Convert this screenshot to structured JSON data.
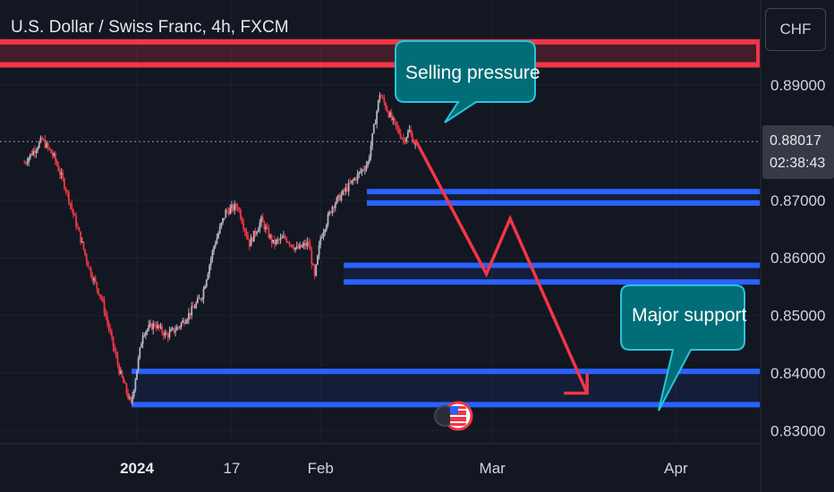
{
  "header": {
    "title": "U.S. Dollar / Swiss Franc, 4h, FXCM",
    "currency": "CHF"
  },
  "price_badge": {
    "price": "0.88017",
    "countdown": "02:38:43"
  },
  "annotations": {
    "selling_pressure": "Selling pressure",
    "major_support": "Major support"
  },
  "colors": {
    "background": "#131722",
    "resistance_zone": "#f23645",
    "support_zone": "#2962ff",
    "arrow": "#f23645",
    "callout_fill": "#006d77",
    "callout_border": "#26c6da",
    "candle_up": "#b2b5be",
    "candle_down": "#f23645"
  },
  "chart_data": {
    "type": "candlestick",
    "symbol": "USDCHF",
    "interval": "4h",
    "ylim": [
      0.828,
      0.9
    ],
    "y_ticks": [
      "0.89000",
      "0.87000",
      "0.86000",
      "0.85000",
      "0.84000",
      "0.83000"
    ],
    "x_ticks": [
      {
        "label": "2024",
        "bold": true,
        "day": 0
      },
      {
        "label": "17",
        "bold": false,
        "day": 16
      },
      {
        "label": "Feb",
        "bold": false,
        "day": 31
      },
      {
        "label": "Mar",
        "bold": false,
        "day": 60
      },
      {
        "label": "Apr",
        "bold": false,
        "day": 91
      }
    ],
    "current_price": 0.88017,
    "price_path": [
      [
        -19,
        0.8765
      ],
      [
        -16,
        0.8805
      ],
      [
        -14,
        0.8775
      ],
      [
        -12,
        0.872
      ],
      [
        -10,
        0.865
      ],
      [
        -8,
        0.858
      ],
      [
        -6,
        0.853
      ],
      [
        -3,
        0.8405
      ],
      [
        -1,
        0.8345
      ],
      [
        1,
        0.847
      ],
      [
        3,
        0.8485
      ],
      [
        5,
        0.8465
      ],
      [
        7,
        0.848
      ],
      [
        9,
        0.8505
      ],
      [
        11,
        0.8535
      ],
      [
        13,
        0.862
      ],
      [
        15,
        0.868
      ],
      [
        17,
        0.869
      ],
      [
        19,
        0.8625
      ],
      [
        21,
        0.8665
      ],
      [
        23,
        0.8625
      ],
      [
        25,
        0.8635
      ],
      [
        27,
        0.8615
      ],
      [
        29,
        0.8625
      ],
      [
        30,
        0.8565
      ],
      [
        31,
        0.8635
      ],
      [
        33,
        0.869
      ],
      [
        35,
        0.8715
      ],
      [
        37,
        0.874
      ],
      [
        39,
        0.8765
      ],
      [
        40,
        0.8825
      ],
      [
        41,
        0.8885
      ],
      [
        43,
        0.884
      ],
      [
        45,
        0.8805
      ],
      [
        46,
        0.882
      ],
      [
        47,
        0.8795
      ]
    ],
    "zones": [
      {
        "kind": "resistance",
        "from": 0.8935,
        "to": 0.8975
      },
      {
        "kind": "support",
        "from": 0.8695,
        "to": 0.8715
      },
      {
        "kind": "support",
        "from": 0.8558,
        "to": 0.8587
      },
      {
        "kind": "support",
        "from": 0.8345,
        "to": 0.8403
      }
    ],
    "projection": [
      [
        47,
        0.8805
      ],
      [
        59,
        0.8572
      ],
      [
        63,
        0.8668
      ],
      [
        76,
        0.8365
      ]
    ]
  }
}
